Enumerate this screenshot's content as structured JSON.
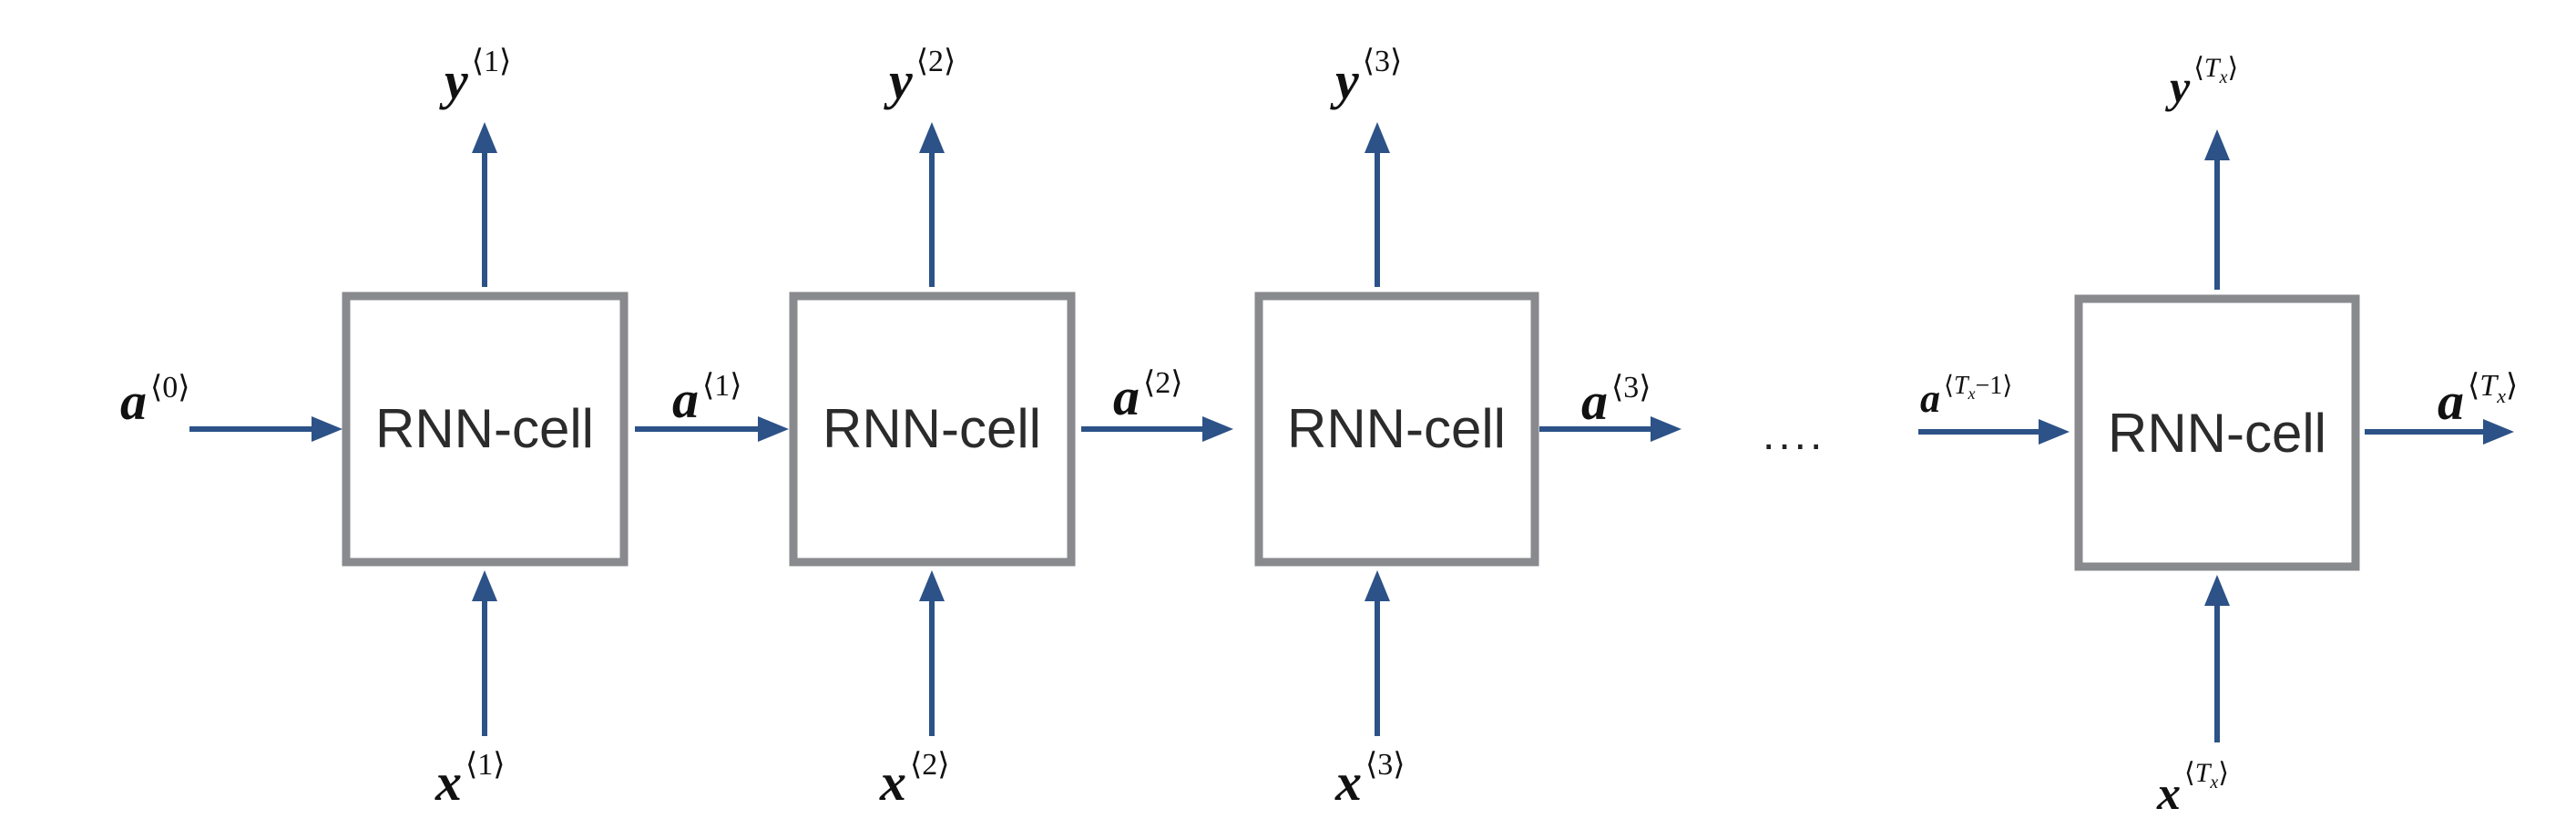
{
  "colors": {
    "arrow": "#2c5287",
    "box_border": "#888a8e",
    "text": "#2b2b2b"
  },
  "cells": [
    {
      "label": "RNN-cell"
    },
    {
      "label": "RNN-cell"
    },
    {
      "label": "RNN-cell"
    },
    {
      "label": "RNN-cell"
    }
  ],
  "ellipsis": "....",
  "vars": {
    "a": "a",
    "x": "x",
    "y": "y",
    "T": "T",
    "sub_x": "x",
    "lang": "⟨",
    "rang": "⟩",
    "one": "1",
    "two": "2",
    "three": "3",
    "zero": "0",
    "minus_one": "−1"
  }
}
